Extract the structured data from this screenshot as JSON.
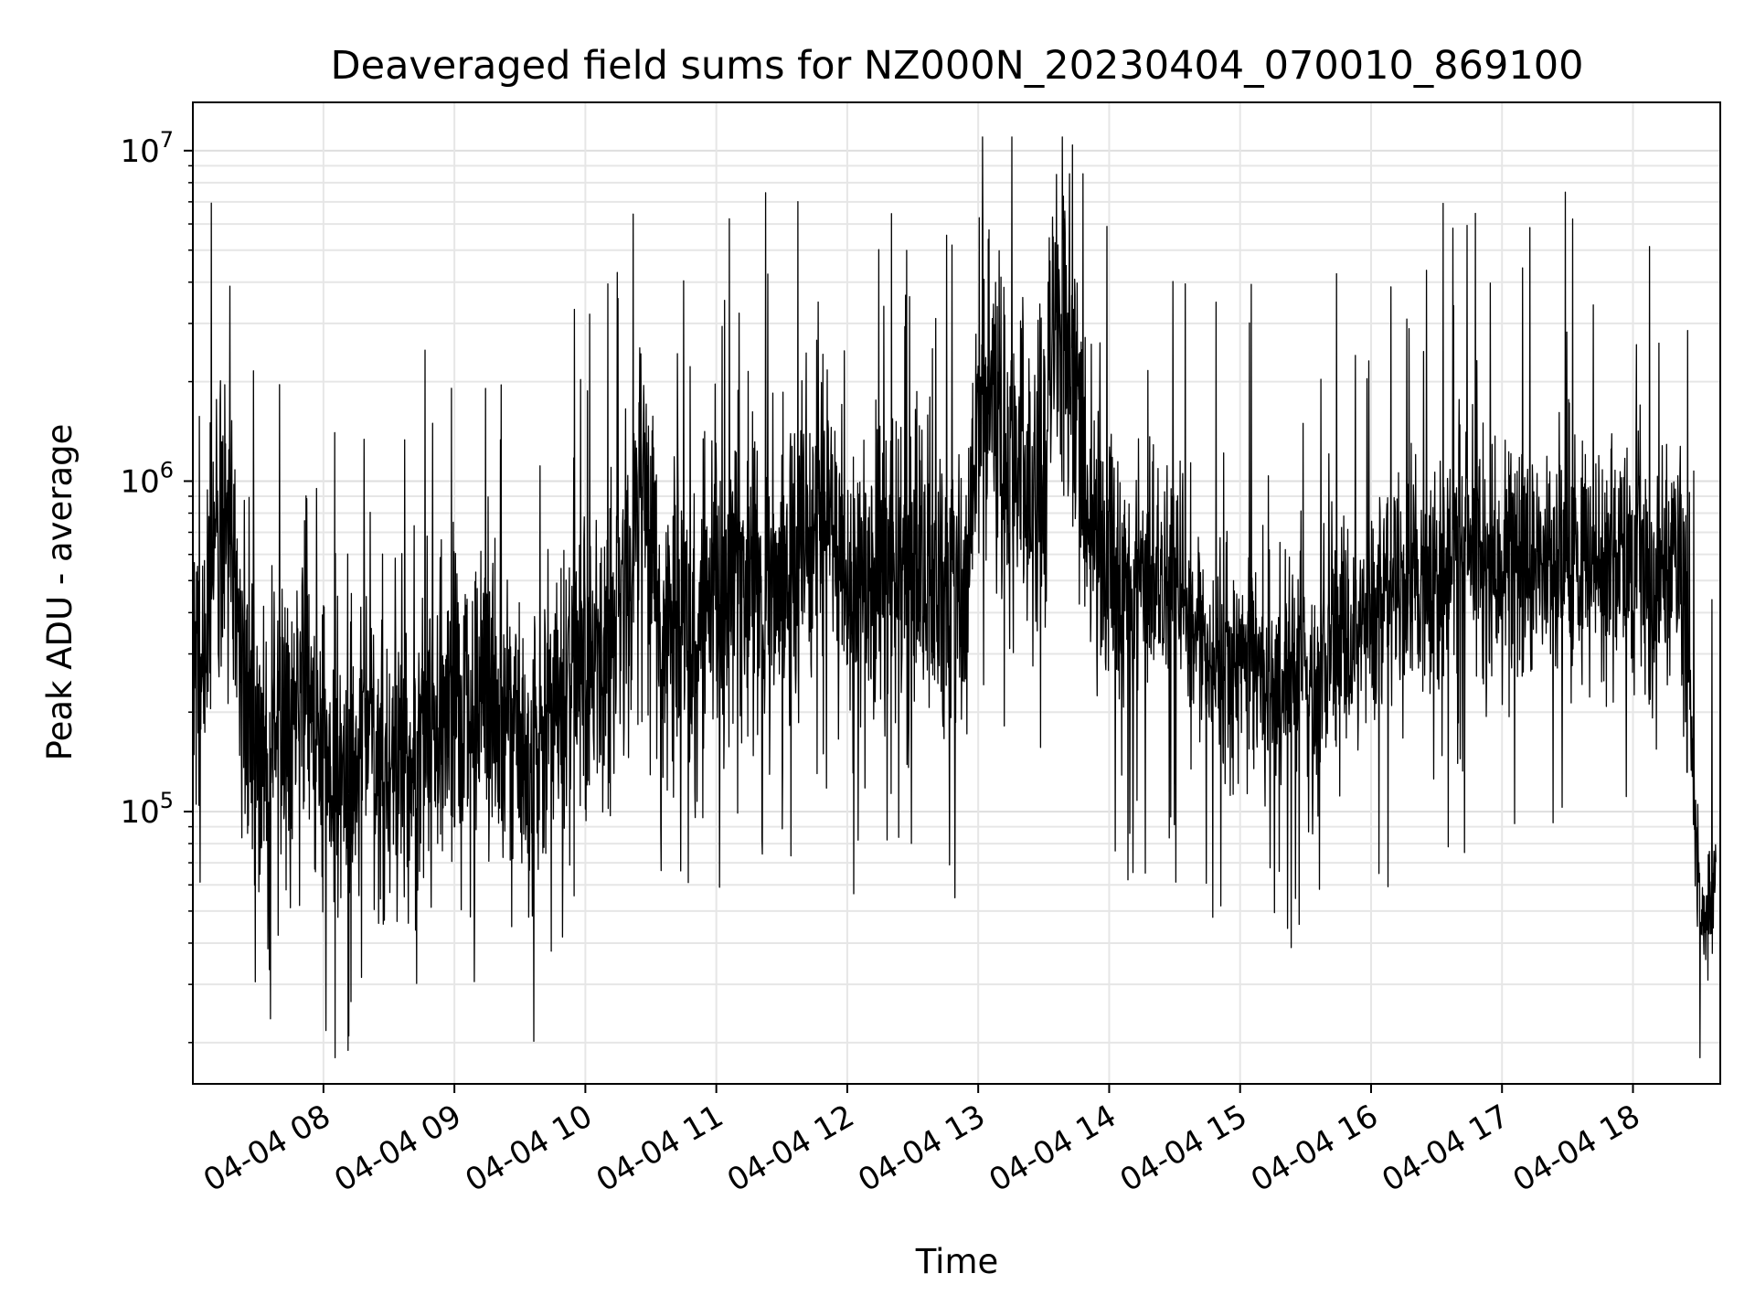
{
  "chart_data": {
    "type": "line",
    "title": "Deaveraged field sums for NZ000N_20230404_070010_869100",
    "xlabel": "Time",
    "ylabel": "Peak ADU - average",
    "y_scale": "log",
    "ylim": [
      15000,
      14000000
    ],
    "xlim": [
      "2023-04-04 07:00:10",
      "2023-04-04 18:40:00"
    ],
    "grid": true,
    "line_color": "#000000",
    "x_ticks": [
      {
        "value": "2023-04-04 08:00",
        "label": "04-04 08"
      },
      {
        "value": "2023-04-04 09:00",
        "label": "04-04 09"
      },
      {
        "value": "2023-04-04 10:00",
        "label": "04-04 10"
      },
      {
        "value": "2023-04-04 11:00",
        "label": "04-04 11"
      },
      {
        "value": "2023-04-04 12:00",
        "label": "04-04 12"
      },
      {
        "value": "2023-04-04 13:00",
        "label": "04-04 13"
      },
      {
        "value": "2023-04-04 14:00",
        "label": "04-04 14"
      },
      {
        "value": "2023-04-04 15:00",
        "label": "04-04 15"
      },
      {
        "value": "2023-04-04 16:00",
        "label": "04-04 16"
      },
      {
        "value": "2023-04-04 17:00",
        "label": "04-04 17"
      },
      {
        "value": "2023-04-04 18:00",
        "label": "04-04 18"
      }
    ],
    "y_ticks": [
      {
        "value": 100000,
        "base": "10",
        "exp": "5"
      },
      {
        "value": 1000000,
        "base": "10",
        "exp": "6"
      },
      {
        "value": 10000000,
        "base": "10",
        "exp": "7"
      }
    ],
    "series": [
      {
        "points": [
          [
            "07:00",
            400000
          ],
          [
            "07:05",
            350000
          ],
          [
            "07:10",
            700000
          ],
          [
            "07:15",
            800000
          ],
          [
            "07:20",
            400000
          ],
          [
            "07:25",
            200000
          ],
          [
            "07:30",
            150000
          ],
          [
            "07:35",
            120000
          ],
          [
            "07:40",
            180000
          ],
          [
            "07:45",
            150000
          ],
          [
            "07:50",
            300000
          ],
          [
            "07:55",
            200000
          ],
          [
            "08:00",
            180000
          ],
          [
            "08:05",
            140000
          ],
          [
            "08:10",
            120000
          ],
          [
            "08:15",
            130000
          ],
          [
            "08:20",
            200000
          ],
          [
            "08:25",
            150000
          ],
          [
            "08:30",
            130000
          ],
          [
            "08:35",
            150000
          ],
          [
            "08:40",
            140000
          ],
          [
            "08:45",
            180000
          ],
          [
            "08:50",
            170000
          ],
          [
            "08:55",
            200000
          ],
          [
            "09:00",
            220000
          ],
          [
            "09:05",
            200000
          ],
          [
            "09:10",
            180000
          ],
          [
            "09:15",
            250000
          ],
          [
            "09:20",
            200000
          ],
          [
            "09:25",
            180000
          ],
          [
            "09:30",
            170000
          ],
          [
            "09:35",
            150000
          ],
          [
            "09:40",
            180000
          ],
          [
            "09:45",
            200000
          ],
          [
            "09:50",
            250000
          ],
          [
            "09:55",
            300000
          ],
          [
            "10:00",
            250000
          ],
          [
            "10:05",
            250000
          ],
          [
            "10:10",
            300000
          ],
          [
            "10:15",
            350000
          ],
          [
            "10:20",
            500000
          ],
          [
            "10:25",
            1200000
          ],
          [
            "10:30",
            600000
          ],
          [
            "10:35",
            350000
          ],
          [
            "10:40",
            400000
          ],
          [
            "10:45",
            350000
          ],
          [
            "10:50",
            300000
          ],
          [
            "10:55",
            400000
          ],
          [
            "11:00",
            450000
          ],
          [
            "11:05",
            500000
          ],
          [
            "11:10",
            550000
          ],
          [
            "11:15",
            500000
          ],
          [
            "11:20",
            600000
          ],
          [
            "11:25",
            500000
          ],
          [
            "11:30",
            450000
          ],
          [
            "11:35",
            550000
          ],
          [
            "11:40",
            700000
          ],
          [
            "11:45",
            800000
          ],
          [
            "11:50",
            900000
          ],
          [
            "11:55",
            700000
          ],
          [
            "12:00",
            500000
          ],
          [
            "12:05",
            400000
          ],
          [
            "12:10",
            450000
          ],
          [
            "12:15",
            500000
          ],
          [
            "12:20",
            600000
          ],
          [
            "12:25",
            550000
          ],
          [
            "12:30",
            500000
          ],
          [
            "12:35",
            550000
          ],
          [
            "12:40",
            600000
          ],
          [
            "12:45",
            500000
          ],
          [
            "12:50",
            400000
          ],
          [
            "12:55",
            500000
          ],
          [
            "13:00",
            1500000
          ],
          [
            "13:05",
            2000000
          ],
          [
            "13:10",
            1500000
          ],
          [
            "13:15",
            1000000
          ],
          [
            "13:20",
            1200000
          ],
          [
            "13:25",
            900000
          ],
          [
            "13:30",
            1300000
          ],
          [
            "13:35",
            3000000
          ],
          [
            "13:40",
            2500000
          ],
          [
            "13:45",
            2000000
          ],
          [
            "13:50",
            800000
          ],
          [
            "13:55",
            600000
          ],
          [
            "14:00",
            550000
          ],
          [
            "14:05",
            500000
          ],
          [
            "14:10",
            450000
          ],
          [
            "14:15",
            500000
          ],
          [
            "14:20",
            450000
          ],
          [
            "14:25",
            400000
          ],
          [
            "14:30",
            450000
          ],
          [
            "14:35",
            400000
          ],
          [
            "14:40",
            350000
          ],
          [
            "14:45",
            300000
          ],
          [
            "14:50",
            280000
          ],
          [
            "14:55",
            300000
          ],
          [
            "15:00",
            300000
          ],
          [
            "15:05",
            280000
          ],
          [
            "15:10",
            250000
          ],
          [
            "15:15",
            250000
          ],
          [
            "15:20",
            230000
          ],
          [
            "15:25",
            250000
          ],
          [
            "15:30",
            280000
          ],
          [
            "15:35",
            250000
          ],
          [
            "15:40",
            300000
          ],
          [
            "15:45",
            320000
          ],
          [
            "15:50",
            350000
          ],
          [
            "15:55",
            380000
          ],
          [
            "16:00",
            400000
          ],
          [
            "16:05",
            420000
          ],
          [
            "16:10",
            450000
          ],
          [
            "16:15",
            480000
          ],
          [
            "16:20",
            500000
          ],
          [
            "16:25",
            520000
          ],
          [
            "16:30",
            550000
          ],
          [
            "16:35",
            540000
          ],
          [
            "16:40",
            560000
          ],
          [
            "16:45",
            580000
          ],
          [
            "16:50",
            560000
          ],
          [
            "16:55",
            550000
          ],
          [
            "17:00",
            560000
          ],
          [
            "17:05",
            580000
          ],
          [
            "17:10",
            560000
          ],
          [
            "17:15",
            550000
          ],
          [
            "17:20",
            560000
          ],
          [
            "17:25",
            580000
          ],
          [
            "17:30",
            560000
          ],
          [
            "17:35",
            550000
          ],
          [
            "17:40",
            540000
          ],
          [
            "17:45",
            560000
          ],
          [
            "17:50",
            580000
          ],
          [
            "17:55",
            600000
          ],
          [
            "18:00",
            600000
          ],
          [
            "18:05",
            550000
          ],
          [
            "18:10",
            500000
          ],
          [
            "18:15",
            600000
          ],
          [
            "18:20",
            700000
          ],
          [
            "18:25",
            300000
          ],
          [
            "18:30",
            60000
          ],
          [
            "18:35",
            45000
          ],
          [
            "18:38",
            70000
          ]
        ]
      }
    ]
  }
}
